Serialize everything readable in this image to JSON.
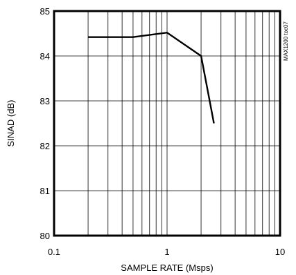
{
  "chart_data": {
    "type": "line",
    "xlabel": "SAMPLE RATE (Msps)",
    "ylabel": "SINAD (dB)",
    "code": "MAX1200 toc07",
    "xscale": "log",
    "xlim": [
      0.1,
      10
    ],
    "ylim": [
      80,
      85
    ],
    "grid": true,
    "xticks": [
      {
        "value": 0.1,
        "label": "0.1"
      },
      {
        "value": 1,
        "label": "1"
      },
      {
        "value": 10,
        "label": "10"
      }
    ],
    "yticks": [
      {
        "value": 80,
        "label": "80"
      },
      {
        "value": 81,
        "label": "81"
      },
      {
        "value": 82,
        "label": "82"
      },
      {
        "value": 83,
        "label": "83"
      },
      {
        "value": 84,
        "label": "84"
      },
      {
        "value": 85,
        "label": "85"
      }
    ],
    "series": [
      {
        "x": [
          0.2,
          0.5,
          1.0,
          2.0,
          2.3,
          2.6
        ],
        "y": [
          84.42,
          84.42,
          84.52,
          84.0,
          83.2,
          82.5
        ]
      }
    ]
  }
}
